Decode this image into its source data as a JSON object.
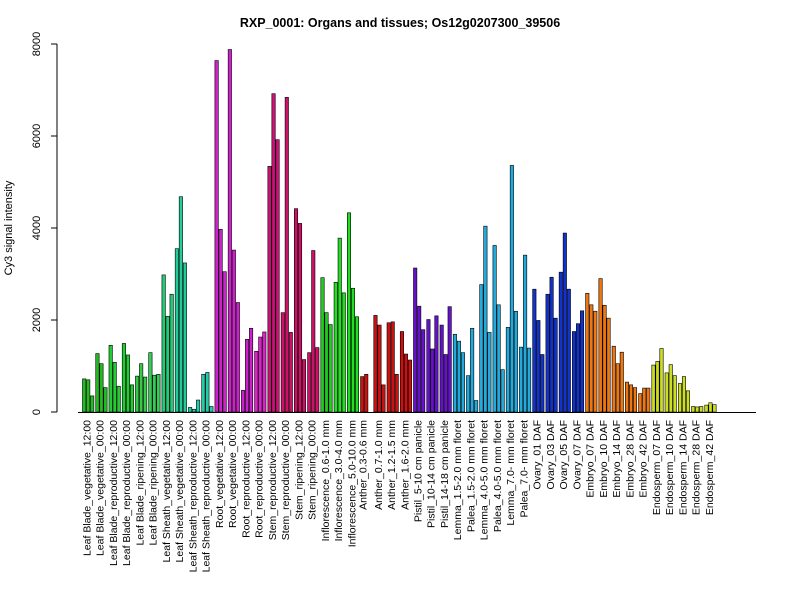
{
  "chart_data": {
    "type": "bar",
    "title": "RXP_0001: Organs and tissues; Os12g0207300_39506",
    "ylabel": "Cy3 signal intensity",
    "xlabel": "",
    "ylim": [
      0,
      8000
    ],
    "yticks": [
      0,
      2000,
      4000,
      6000,
      8000
    ],
    "grid": false,
    "legend": "none",
    "groups": [
      {
        "label": "Leaf Blade_vegetative_12:00",
        "color": "#22bb22",
        "values": [
          720,
          700,
          350
        ]
      },
      {
        "label": "Leaf Blade_vegetative_00:00",
        "color": "#22bb22",
        "values": [
          1270,
          1050,
          530
        ]
      },
      {
        "label": "Leaf Blade_reproductive_12:00",
        "color": "#22cc33",
        "values": [
          1450,
          1080,
          560
        ]
      },
      {
        "label": "Leaf Blade_reproductive_00:00",
        "color": "#22cc33",
        "values": [
          1490,
          1240,
          590
        ]
      },
      {
        "label": "Leaf Blade_ripening_12:00",
        "color": "#33cc44",
        "values": [
          780,
          1050,
          760
        ]
      },
      {
        "label": "Leaf Blade_ripening_00:00",
        "color": "#33cc55",
        "values": [
          1290,
          800,
          820
        ]
      },
      {
        "label": "Leaf Sheath_vegetative_12:00",
        "color": "#22cc77",
        "values": [
          2980,
          2080,
          2560
        ]
      },
      {
        "label": "Leaf Sheath_vegetative_00:00",
        "color": "#22cc99",
        "values": [
          3550,
          4680,
          3240
        ]
      },
      {
        "label": "Leaf Sheath_reproductive_12:00",
        "color": "#22ccaa",
        "values": [
          100,
          60,
          260
        ]
      },
      {
        "label": "Leaf Sheath_reproductive_00:00",
        "color": "#22ccaa",
        "values": [
          820,
          860,
          120
        ]
      },
      {
        "label": "Root_vegetative_12:00",
        "color": "#cc22cc",
        "values": [
          7640,
          3970,
          3050
        ]
      },
      {
        "label": "Root_vegetative_00:00",
        "color": "#cc22cc",
        "values": [
          7880,
          3520,
          2380
        ]
      },
      {
        "label": "Root_reproductive_12:00",
        "color": "#cc22cc",
        "values": [
          470,
          1580,
          1820
        ]
      },
      {
        "label": "Root_reproductive_00:00",
        "color": "#dd22cc",
        "values": [
          1320,
          1630,
          1740
        ]
      },
      {
        "label": "Stem_reproductive_12:00",
        "color": "#cc1177",
        "values": [
          5340,
          6920,
          5920
        ]
      },
      {
        "label": "Stem_reproductive_00:00",
        "color": "#cc1166",
        "values": [
          2160,
          6840,
          1730
        ]
      },
      {
        "label": "Stem_ripening_12:00",
        "color": "#cc1166",
        "values": [
          4420,
          4100,
          1140
        ]
      },
      {
        "label": "Stem_ripening_00:00",
        "color": "#cc1166",
        "values": [
          1290,
          3510,
          1400
        ]
      },
      {
        "label": "Inflorescence_0.6-1.0 mm",
        "color": "#22cc22",
        "values": [
          2920,
          2160,
          1900
        ]
      },
      {
        "label": "Inflorescence_3.0-4.0 mm",
        "color": "#22dd22",
        "values": [
          2820,
          3780,
          2590
        ]
      },
      {
        "label": "Inflorescence_5.0-10.0 mm",
        "color": "#22dd22",
        "values": [
          4330,
          2690,
          2070
        ]
      },
      {
        "label": "Anther_0.3-0.6 mm",
        "color": "#cc1111",
        "values": [
          770,
          820
        ]
      },
      {
        "label": "Anther_0.7-1.0 mm",
        "color": "#cc1111",
        "values": [
          2100,
          1890,
          590
        ]
      },
      {
        "label": "Anther_1.2-1.5 mm",
        "color": "#cc1111",
        "values": [
          1940,
          1960,
          820
        ]
      },
      {
        "label": "Anther_1.6-2.0 mm",
        "color": "#cc1111",
        "values": [
          1750,
          1260,
          1130
        ]
      },
      {
        "label": "Pistil_5-10 cm panicle",
        "color": "#6611cc",
        "values": [
          3130,
          2300,
          1790
        ]
      },
      {
        "label": "Pistil_10-14 cm panicle",
        "color": "#6611cc",
        "values": [
          2010,
          1370,
          2090
        ]
      },
      {
        "label": "Pistil_14-18 cm panicle",
        "color": "#6611cc",
        "values": [
          1890,
          1250,
          2290
        ]
      },
      {
        "label": "Lemma_1.5-2.0 mm floret",
        "color": "#22aadd",
        "values": [
          1690,
          1540,
          1290
        ]
      },
      {
        "label": "Palea_1.5-2.0 mm floret",
        "color": "#22aadd",
        "values": [
          790,
          1820,
          250
        ]
      },
      {
        "label": "Lemma_4.0-5.0 mm floret",
        "color": "#22aadd",
        "values": [
          2770,
          4040,
          1730
        ]
      },
      {
        "label": "Palea_4.0-5.0 mm floret",
        "color": "#22aadd",
        "values": [
          3620,
          2330,
          920
        ]
      },
      {
        "label": "Lemma_7.0- mm floret",
        "color": "#22aadd",
        "values": [
          1840,
          5360,
          2190
        ]
      },
      {
        "label": "Palea_7.0- mm floret",
        "color": "#22aadd",
        "values": [
          1410,
          3410,
          1390
        ]
      },
      {
        "label": "Ovary_01 DAF",
        "color": "#1133cc",
        "values": [
          2670,
          1990,
          1250
        ]
      },
      {
        "label": "Ovary_03 DAF",
        "color": "#1133cc",
        "values": [
          2560,
          2930,
          2040
        ]
      },
      {
        "label": "Ovary_05 DAF",
        "color": "#1133cc",
        "values": [
          3040,
          3890,
          2670
        ]
      },
      {
        "label": "Ovary_07 DAF",
        "color": "#1133cc",
        "values": [
          1750,
          1920,
          2200
        ]
      },
      {
        "label": "Embryo_07 DAF",
        "color": "#ee7711",
        "values": [
          2580,
          2330,
          2190
        ]
      },
      {
        "label": "Embryo_10 DAF",
        "color": "#ee7711",
        "values": [
          2900,
          2320,
          2040
        ]
      },
      {
        "label": "Embryo_14 DAF",
        "color": "#ee7711",
        "values": [
          1430,
          1050,
          1300
        ]
      },
      {
        "label": "Embryo_28 DAF",
        "color": "#ee7711",
        "values": [
          650,
          590,
          530
        ]
      },
      {
        "label": "Embryo_42 DAF",
        "color": "#ee7711",
        "values": [
          400,
          520,
          520
        ]
      },
      {
        "label": "Endosperm_07 DAF",
        "color": "#ccdd22",
        "values": [
          1020,
          1100,
          1380
        ]
      },
      {
        "label": "Endosperm_10 DAF",
        "color": "#ccdd22",
        "values": [
          850,
          1030,
          790
        ]
      },
      {
        "label": "Endosperm_14 DAF",
        "color": "#ccdd22",
        "values": [
          620,
          770,
          460
        ]
      },
      {
        "label": "Endosperm_28 DAF",
        "color": "#ccdd22",
        "values": [
          120,
          110,
          120
        ]
      },
      {
        "label": "Endosperm_42 DAF",
        "color": "#ccdd22",
        "values": [
          150,
          200,
          160
        ]
      }
    ]
  }
}
